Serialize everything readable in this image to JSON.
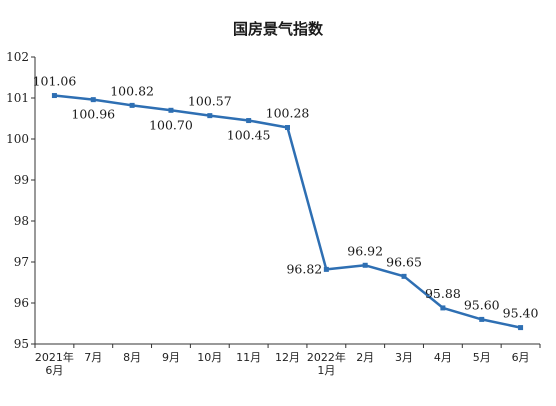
{
  "chart_data": {
    "type": "line",
    "title": "国房景气指数",
    "xlabel": "",
    "ylabel": "",
    "ylim": [
      95,
      102
    ],
    "yticks": [
      95,
      96,
      97,
      98,
      99,
      100,
      101,
      102
    ],
    "grid": false,
    "categories": [
      "2021年6月",
      "7月",
      "8月",
      "9月",
      "10月",
      "11月",
      "12月",
      "2022年1月",
      "2月",
      "3月",
      "4月",
      "5月",
      "6月"
    ],
    "category_lines": [
      [
        "2021年",
        "6月"
      ],
      [
        "7月"
      ],
      [
        "8月"
      ],
      [
        "9月"
      ],
      [
        "10月"
      ],
      [
        "11月"
      ],
      [
        "12月"
      ],
      [
        "2022年",
        "1月"
      ],
      [
        "2月"
      ],
      [
        "3月"
      ],
      [
        "4月"
      ],
      [
        "5月"
      ],
      [
        "6月"
      ]
    ],
    "series": [
      {
        "values": [
          101.06,
          100.96,
          100.82,
          100.7,
          100.57,
          100.45,
          100.28,
          96.82,
          96.92,
          96.65,
          95.88,
          95.6,
          95.4
        ],
        "labels": [
          "101.06",
          "100.96",
          "100.82",
          "100.70",
          "100.57",
          "100.45",
          "100.28",
          "96.82",
          "96.92",
          "96.65",
          "95.88",
          "95.60",
          "95.40"
        ],
        "color": "#2e6fb3"
      }
    ]
  }
}
